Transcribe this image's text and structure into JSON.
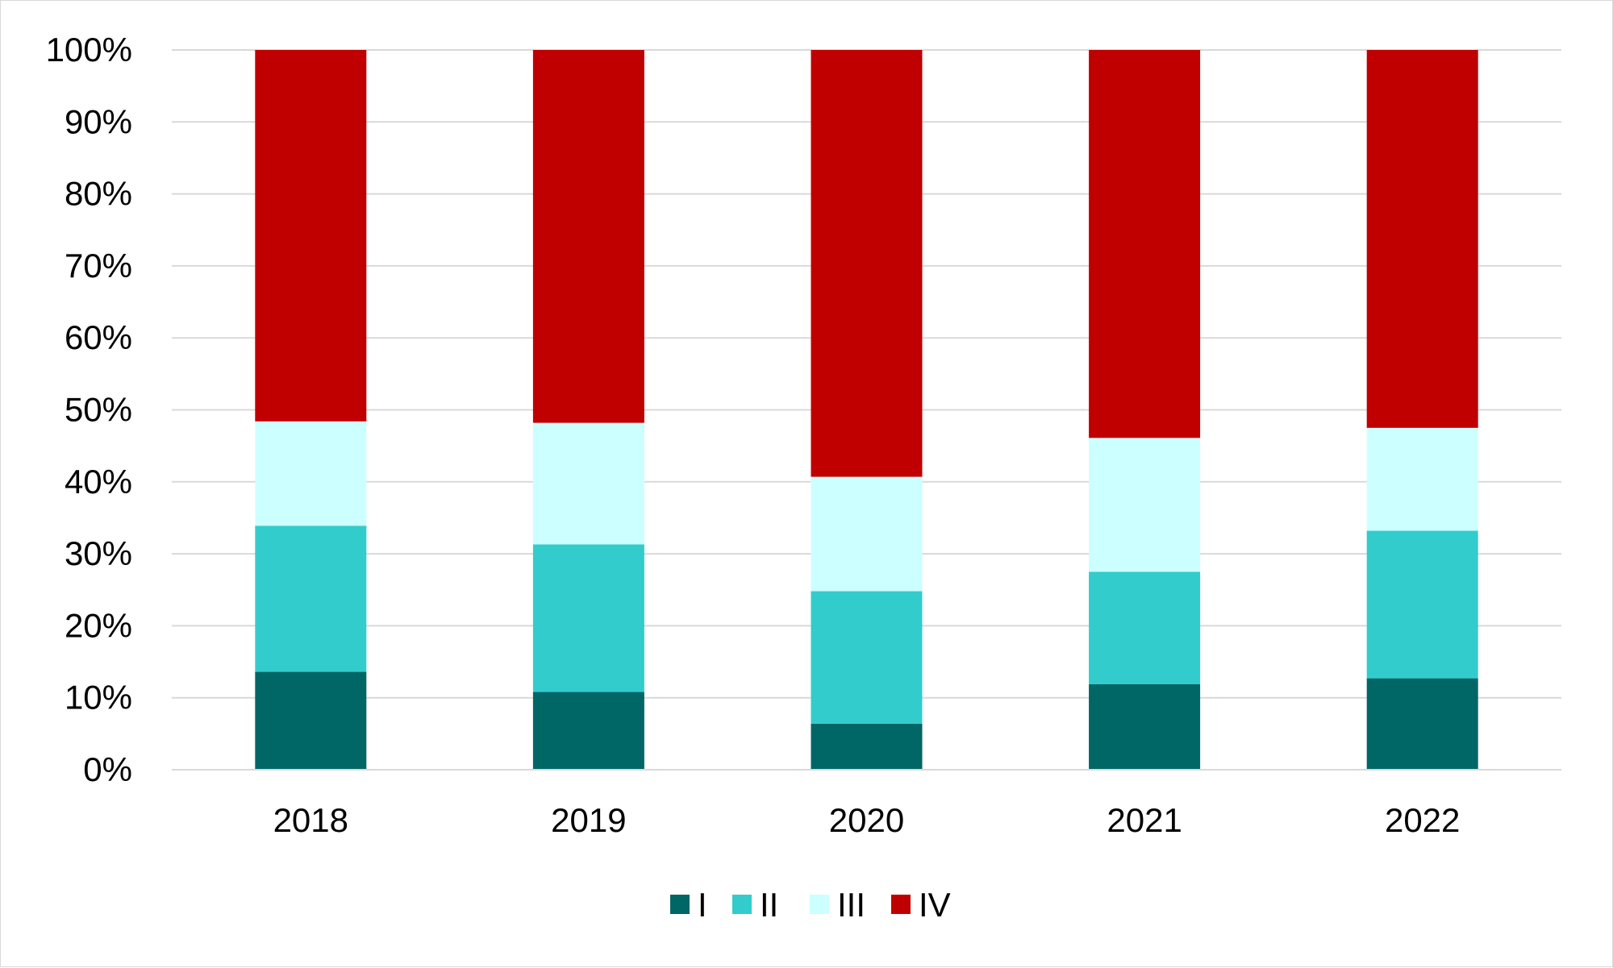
{
  "chart_data": {
    "type": "bar",
    "stacked": true,
    "percent": true,
    "categories": [
      "2018",
      "2019",
      "2020",
      "2021",
      "2022"
    ],
    "series": [
      {
        "name": "I",
        "color": "#006666",
        "values": [
          13.6,
          10.8,
          6.4,
          11.9,
          12.7
        ]
      },
      {
        "name": "II",
        "color": "#33CCCC",
        "values": [
          20.3,
          20.5,
          18.4,
          15.6,
          20.5
        ]
      },
      {
        "name": "III",
        "color": "#CCFFFF",
        "values": [
          14.5,
          16.9,
          15.9,
          18.6,
          14.3
        ]
      },
      {
        "name": "IV",
        "color": "#C00000",
        "values": [
          51.6,
          51.8,
          59.3,
          53.9,
          52.5
        ]
      }
    ],
    "ylim": [
      0,
      100
    ],
    "yticks": [
      "0%",
      "10%",
      "20%",
      "30%",
      "40%",
      "50%",
      "60%",
      "70%",
      "80%",
      "90%",
      "100%"
    ],
    "grid": true,
    "legend": "bottom-center"
  }
}
